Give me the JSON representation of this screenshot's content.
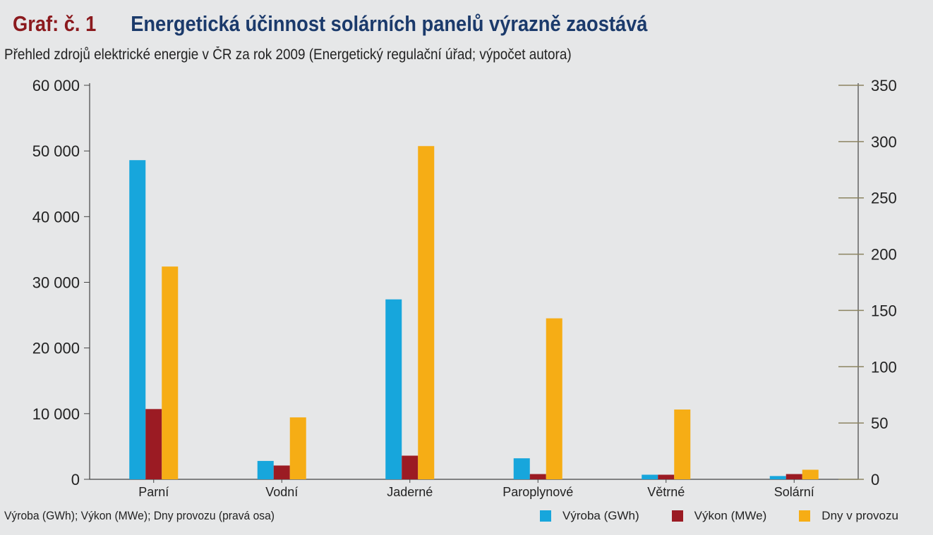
{
  "header": {
    "label": "Graf: č. 1",
    "title": "Energetická účinnost solárních panelů výrazně zaostává",
    "subtitle": "Přehled zdrojů elektrické energie v ČR za rok 2009 (Energetický regulační úřad; výpočet autora)"
  },
  "footnote": "Výroba (GWh); Výkon (MWe); Dny provozu (pravá osa)",
  "colors": {
    "vyroba": "#17a6dc",
    "vykon": "#9b1b23",
    "dny": "#f6ad15"
  },
  "chart_data": {
    "type": "bar",
    "title": "Energetická účinnost solárních panelů výrazně zaostává",
    "subtitle": "Přehled zdrojů elektrické energie v ČR za rok 2009 (Energetický regulační úřad; výpočet autora)",
    "categories": [
      "Parní",
      "Vodní",
      "Jaderné",
      "Paroplynové",
      "Větrné",
      "Solární"
    ],
    "series": [
      {
        "name": "Výroba (GWh)",
        "axis": "left",
        "color": "#17a6dc",
        "values": [
          48600,
          2800,
          27400,
          3200,
          700,
          500
        ]
      },
      {
        "name": "Výkon (MWe)",
        "axis": "left",
        "color": "#9b1b23",
        "values": [
          10700,
          2100,
          3600,
          800,
          700,
          800
        ]
      },
      {
        "name": "Dny v provozu",
        "axis": "right",
        "color": "#f6ad15",
        "values": [
          189,
          55,
          296,
          143,
          62,
          8.5
        ]
      }
    ],
    "y_left": {
      "lim": [
        0,
        60000
      ],
      "ticks": [
        0,
        10000,
        20000,
        30000,
        40000,
        50000,
        60000
      ],
      "tick_labels": [
        "0",
        "10 000",
        "20 000",
        "30 000",
        "40 000",
        "50 000",
        "60 000"
      ]
    },
    "y_right": {
      "lim": [
        0,
        350
      ],
      "ticks": [
        0,
        50,
        100,
        150,
        200,
        250,
        300,
        350
      ],
      "tick_labels": [
        "0",
        "50",
        "100",
        "150",
        "200",
        "250",
        "300",
        "350"
      ]
    },
    "grid": false,
    "legend": "bottom-right"
  }
}
